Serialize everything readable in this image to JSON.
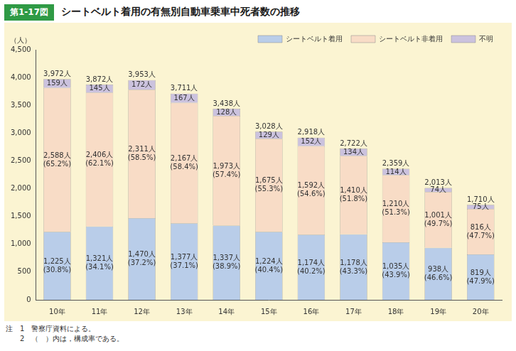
{
  "chart_data": {
    "type": "bar",
    "figure_label": "第1-17図",
    "title": "シートベルト着用の有無別自動車乗車中死者数の推移",
    "y_label": "（人）",
    "stacked": true,
    "grid": false,
    "data_labels": true,
    "legend": "top-right",
    "categories": [
      "10年",
      "11年",
      "12年",
      "13年",
      "14年",
      "15年",
      "16年",
      "17年",
      "18年",
      "19年",
      "20年"
    ],
    "series": [
      {
        "name": "シートベルト着用",
        "color": "#b9cde9",
        "values": [
          1225,
          1321,
          1470,
          1377,
          1337,
          1224,
          1174,
          1178,
          1035,
          938,
          819
        ],
        "value_labels": [
          "1,225人",
          "1,321人",
          "1,470人",
          "1,377人",
          "1,337人",
          "1,224人",
          "1,174人",
          "1,178人",
          "1,035人",
          "938人",
          "819人"
        ],
        "percent_labels": [
          "(30.8%)",
          "(34.1%)",
          "(37.2%)",
          "(37.1%)",
          "(38.9%)",
          "(40.4%)",
          "(40.2%)",
          "(43.3%)",
          "(43.9%)",
          "(46.6%)",
          "(47.9%)"
        ]
      },
      {
        "name": "シートベルト非着用",
        "color": "#f8dcc6",
        "values": [
          2588,
          2406,
          2311,
          2167,
          1973,
          1675,
          1592,
          1410,
          1210,
          1001,
          816
        ],
        "value_labels": [
          "2,588人",
          "2,406人",
          "2,311人",
          "2,167人",
          "1,973人",
          "1,675人",
          "1,592人",
          "1,410人",
          "1,210人",
          "1,001人",
          "816人"
        ],
        "percent_labels": [
          "(65.2%)",
          "(62.1%)",
          "(58.5%)",
          "(58.4%)",
          "(57.4%)",
          "(55.3%)",
          "(54.6%)",
          "(51.8%)",
          "(51.3%)",
          "(49.7%)",
          "(47.7%)"
        ]
      },
      {
        "name": "不明",
        "color": "#cbc2de",
        "values": [
          159,
          145,
          172,
          167,
          128,
          129,
          152,
          134,
          114,
          74,
          75
        ],
        "value_labels": [
          "159人",
          "145人",
          "172人",
          "167人",
          "128人",
          "129人",
          "152人",
          "134人",
          "114人",
          "74人",
          "75人"
        ]
      }
    ],
    "totals": [
      3972,
      3872,
      3953,
      3711,
      3438,
      3028,
      2918,
      2722,
      2359,
      2013,
      1710
    ],
    "total_labels": [
      "3,972人",
      "3,872人",
      "3,953人",
      "3,711人",
      "3,438人",
      "3,028人",
      "2,918人",
      "2,722人",
      "2,359人",
      "2,013人",
      "1,710人"
    ],
    "ylim": [
      0,
      4500
    ],
    "yticks": [
      0,
      500,
      {
        "value": 1000,
        "label": "1,000"
      },
      {
        "value": 1500,
        "label": "1,500"
      },
      {
        "value": 2000,
        "label": "2,000"
      },
      {
        "value": 2500,
        "label": "2,500"
      },
      {
        "value": 3000,
        "label": "3,000"
      },
      {
        "value": 3500,
        "label": "3,500"
      },
      {
        "value": 4000,
        "label": "4,000"
      },
      {
        "value": 4500,
        "label": "4,500"
      }
    ],
    "notes": [
      "注　1　警察庁資料による。",
      "2　（　）内は，構成率である。"
    ]
  }
}
